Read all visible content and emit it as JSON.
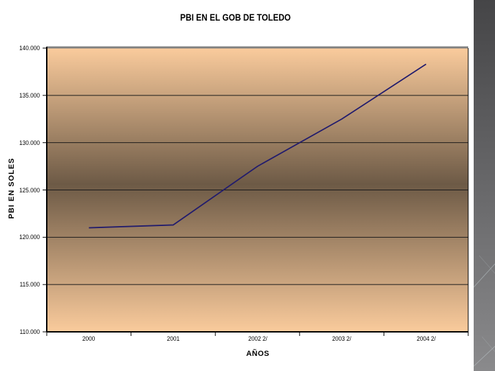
{
  "slide": {
    "background": "#ffffff",
    "sidebar": {
      "x": 689,
      "width": 31,
      "top_color": "#454547",
      "bottom_color": "#8a8a8c",
      "diagonal_line_color": "#c8d2d8"
    }
  },
  "chart_data": {
    "type": "line",
    "title": "PBI EN EL GOB DE TOLEDO",
    "xlabel": "AÑOS",
    "ylabel": "PBI EN SOLES",
    "categories": [
      "2000",
      "2001",
      "2002 2/",
      "2003 2/",
      "2004 2/"
    ],
    "series": [
      {
        "name": "PBI",
        "values": [
          121.0,
          121.3,
          127.5,
          132.5,
          138.3
        ]
      }
    ],
    "ylim": [
      110,
      140
    ],
    "ytick_step": 5,
    "ytick_labels": [
      "110.000",
      "115.000",
      "120.000",
      "125.000",
      "130.000",
      "135.000",
      "140.000"
    ],
    "grid": true,
    "legend": "none",
    "line_color": "#221c6d",
    "gridline_color": "#1a1a1a",
    "axis_color": "#000000",
    "plot_top_border_color": "#808080",
    "plot_gradient_top": "#facb9c",
    "plot_gradient_mid": "#6d5a46",
    "plot_gradient_bottom": "#facb9c"
  }
}
